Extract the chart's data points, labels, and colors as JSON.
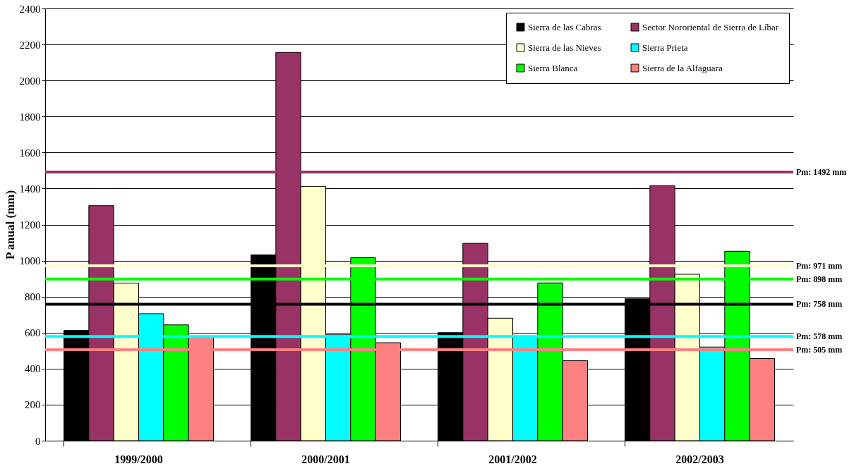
{
  "chart_data": {
    "type": "bar",
    "ylabel": "P anual (mm)",
    "categories": [
      "1999/2000",
      "2000/2001",
      "2001/2002",
      "2002/2003"
    ],
    "series": [
      {
        "name": "Sierra de las Cabras",
        "color": "#000000",
        "values": [
          612,
          1032,
          600,
          788
        ]
      },
      {
        "name": "Sector Nororiental de Sierra de Líbar",
        "color": "#993366",
        "values": [
          1305,
          2156,
          1096,
          1416
        ]
      },
      {
        "name": "Sierra de las Nieves",
        "color": "#ffffcc",
        "values": [
          875,
          1412,
          680,
          924
        ]
      },
      {
        "name": "Sierra Prieta",
        "color": "#00ffff",
        "values": [
          705,
          588,
          575,
          520
        ]
      },
      {
        "name": "Sierra Blanca",
        "color": "#00ff00",
        "values": [
          643,
          1016,
          876,
          1052
        ]
      },
      {
        "name": "Sierra de la Alfaguara",
        "color": "#ff8080",
        "values": [
          575,
          544,
          444,
          456
        ]
      }
    ],
    "ylim": [
      0,
      2400
    ],
    "yticks": [
      0,
      200,
      400,
      600,
      800,
      1000,
      1200,
      1400,
      1600,
      1800,
      2000,
      2200,
      2400
    ],
    "grid": "y",
    "legend": "top right",
    "ref_lines": [
      {
        "axis": "y",
        "value": 1492,
        "label": "Pm: 1492 mm",
        "color": "#993366"
      },
      {
        "axis": "y",
        "value": 971,
        "label": "Pm: 971 mm",
        "color": "#ffffcc"
      },
      {
        "axis": "y",
        "value": 898,
        "label": "Pm: 898 mm",
        "color": "#00ff00"
      },
      {
        "axis": "y",
        "value": 758,
        "label": "Pm: 758 mm",
        "color": "#000000"
      },
      {
        "axis": "y",
        "value": 578,
        "label": "Pm: 578 mm",
        "color": "#00ffff"
      },
      {
        "axis": "y",
        "value": 505,
        "label": "Pm: 505 mm",
        "color": "#ff8080"
      }
    ]
  }
}
